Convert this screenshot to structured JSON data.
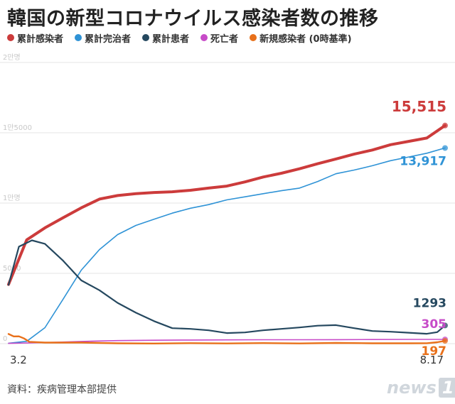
{
  "title": "韓国の新型コロナウイルス感染者数の推移",
  "source": "資料：疾病管理本部提供",
  "logo": {
    "text": "news",
    "mark": "1"
  },
  "chart_data": {
    "type": "line",
    "ylim": [
      0,
      20000
    ],
    "yticks": [
      {
        "value": 20000,
        "label": "2만명"
      },
      {
        "value": 15000,
        "label": "1만5000"
      },
      {
        "value": 10000,
        "label": "1만명"
      },
      {
        "value": 5000,
        "label": "5000"
      },
      {
        "value": 0,
        "label": "0"
      }
    ],
    "x_range": [
      "3.2",
      "8.17"
    ],
    "x_ticks": [
      "3.2",
      "8.17"
    ],
    "grid": true,
    "legend_position": "top-left",
    "series": [
      {
        "name": "累計感染者",
        "color": "#cc3b3b",
        "end_label": "15,515",
        "points": [
          [
            "3.2",
            4212
          ],
          [
            "3.9",
            7382
          ],
          [
            "3.16",
            8236
          ],
          [
            "3.23",
            8961
          ],
          [
            "3.30",
            9661
          ],
          [
            "4.6",
            10284
          ],
          [
            "4.13",
            10537
          ],
          [
            "4.20",
            10674
          ],
          [
            "4.27",
            10752
          ],
          [
            "5.4",
            10804
          ],
          [
            "5.11",
            10909
          ],
          [
            "5.18",
            11065
          ],
          [
            "5.25",
            11206
          ],
          [
            "6.1",
            11503
          ],
          [
            "6.8",
            11852
          ],
          [
            "6.15",
            12121
          ],
          [
            "6.22",
            12438
          ],
          [
            "6.29",
            12800
          ],
          [
            "7.6",
            13137
          ],
          [
            "7.13",
            13479
          ],
          [
            "7.20",
            13771
          ],
          [
            "7.27",
            14150
          ],
          [
            "8.3",
            14389
          ],
          [
            "8.10",
            14626
          ],
          [
            "8.17",
            15515
          ]
        ]
      },
      {
        "name": "累計完治者",
        "color": "#2f93d6",
        "end_label": "13,917",
        "points": [
          [
            "3.2",
            30
          ],
          [
            "3.9",
            166
          ],
          [
            "3.16",
            1137
          ],
          [
            "3.23",
            3166
          ],
          [
            "3.30",
            5228
          ],
          [
            "4.6",
            6694
          ],
          [
            "4.13",
            7757
          ],
          [
            "4.20",
            8411
          ],
          [
            "4.27",
            8854
          ],
          [
            "5.4",
            9283
          ],
          [
            "5.11",
            9632
          ],
          [
            "5.18",
            9888
          ],
          [
            "5.25",
            10226
          ],
          [
            "6.1",
            10446
          ],
          [
            "6.8",
            10669
          ],
          [
            "6.15",
            10881
          ],
          [
            "6.22",
            11064
          ],
          [
            "6.29",
            11537
          ],
          [
            "7.6",
            12086
          ],
          [
            "7.13",
            12348
          ],
          [
            "7.20",
            12655
          ],
          [
            "7.27",
            13016
          ],
          [
            "8.3",
            13280
          ],
          [
            "8.10",
            13545
          ],
          [
            "8.17",
            13917
          ]
        ]
      },
      {
        "name": "累計患者",
        "color": "#25485f",
        "end_label": "1293",
        "points": [
          [
            "3.2",
            4180
          ],
          [
            "3.6",
            6900
          ],
          [
            "3.11",
            7350
          ],
          [
            "3.16",
            7100
          ],
          [
            "3.23",
            5900
          ],
          [
            "3.30",
            4500
          ],
          [
            "4.6",
            3800
          ],
          [
            "4.13",
            2900
          ],
          [
            "4.20",
            2200
          ],
          [
            "4.27",
            1600
          ],
          [
            "5.4",
            1100
          ],
          [
            "5.11",
            1050
          ],
          [
            "5.18",
            950
          ],
          [
            "5.25",
            750
          ],
          [
            "6.1",
            800
          ],
          [
            "6.8",
            950
          ],
          [
            "6.15",
            1050
          ],
          [
            "6.22",
            1150
          ],
          [
            "6.29",
            1280
          ],
          [
            "7.6",
            1320
          ],
          [
            "7.13",
            1100
          ],
          [
            "7.20",
            900
          ],
          [
            "7.27",
            850
          ],
          [
            "8.3",
            780
          ],
          [
            "8.10",
            700
          ],
          [
            "8.14",
            820
          ],
          [
            "8.17",
            1293
          ]
        ]
      },
      {
        "name": "死亡者",
        "color": "#c74bc8",
        "end_label": "305",
        "points": [
          [
            "3.2",
            22
          ],
          [
            "3.16",
            75
          ],
          [
            "3.30",
            158
          ],
          [
            "4.13",
            217
          ],
          [
            "4.27",
            244
          ],
          [
            "5.11",
            256
          ],
          [
            "5.25",
            267
          ],
          [
            "6.8",
            276
          ],
          [
            "6.22",
            280
          ],
          [
            "7.6",
            285
          ],
          [
            "7.20",
            291
          ],
          [
            "8.3",
            301
          ],
          [
            "8.17",
            305
          ]
        ]
      },
      {
        "name": "新規感染者 (0時基準)",
        "color": "#e8701a",
        "end_label": "197",
        "points": [
          [
            "3.2",
            686
          ],
          [
            "3.4",
            516
          ],
          [
            "3.6",
            518
          ],
          [
            "3.8",
            367
          ],
          [
            "3.10",
            131
          ],
          [
            "3.16",
            74
          ],
          [
            "3.30",
            78
          ],
          [
            "4.13",
            25
          ],
          [
            "4.27",
            10
          ],
          [
            "5.11",
            35
          ],
          [
            "5.25",
            16
          ],
          [
            "6.8",
            38
          ],
          [
            "6.22",
            17
          ],
          [
            "7.6",
            48
          ],
          [
            "7.20",
            26
          ],
          [
            "8.3",
            23
          ],
          [
            "8.10",
            28
          ],
          [
            "8.14",
            103
          ],
          [
            "8.17",
            197
          ]
        ]
      }
    ]
  }
}
